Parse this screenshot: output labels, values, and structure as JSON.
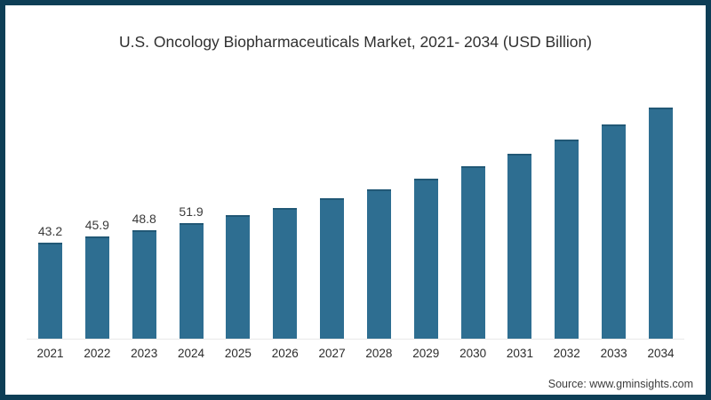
{
  "chart_data": {
    "type": "bar",
    "title": "U.S. Oncology Biopharmaceuticals Market, 2021- 2034 (USD Billion)",
    "categories": [
      "2021",
      "2022",
      "2023",
      "2024",
      "2025",
      "2026",
      "2027",
      "2028",
      "2029",
      "2030",
      "2031",
      "2032",
      "2033",
      "2034"
    ],
    "values": [
      43.2,
      45.9,
      48.8,
      51.9,
      55.5,
      59.0,
      63.1,
      67.3,
      72.1,
      77.5,
      83.1,
      89.6,
      96.4,
      104.0
    ],
    "data_labels": [
      "43.2",
      "45.9",
      "48.8",
      "51.9",
      "",
      "",
      "",
      "",
      "",
      "",
      "",
      "",
      "",
      ""
    ],
    "xlabel": "",
    "ylabel": "",
    "ylim": [
      0,
      110
    ],
    "y_axis_visible": false,
    "gridlines": false,
    "legend": "none",
    "bar_color": "#2e6e91",
    "baseline_color": "#e8e8e8",
    "frame_border_color": "#0e3e56"
  },
  "source": {
    "text": "Source: www.gminsights.com"
  }
}
